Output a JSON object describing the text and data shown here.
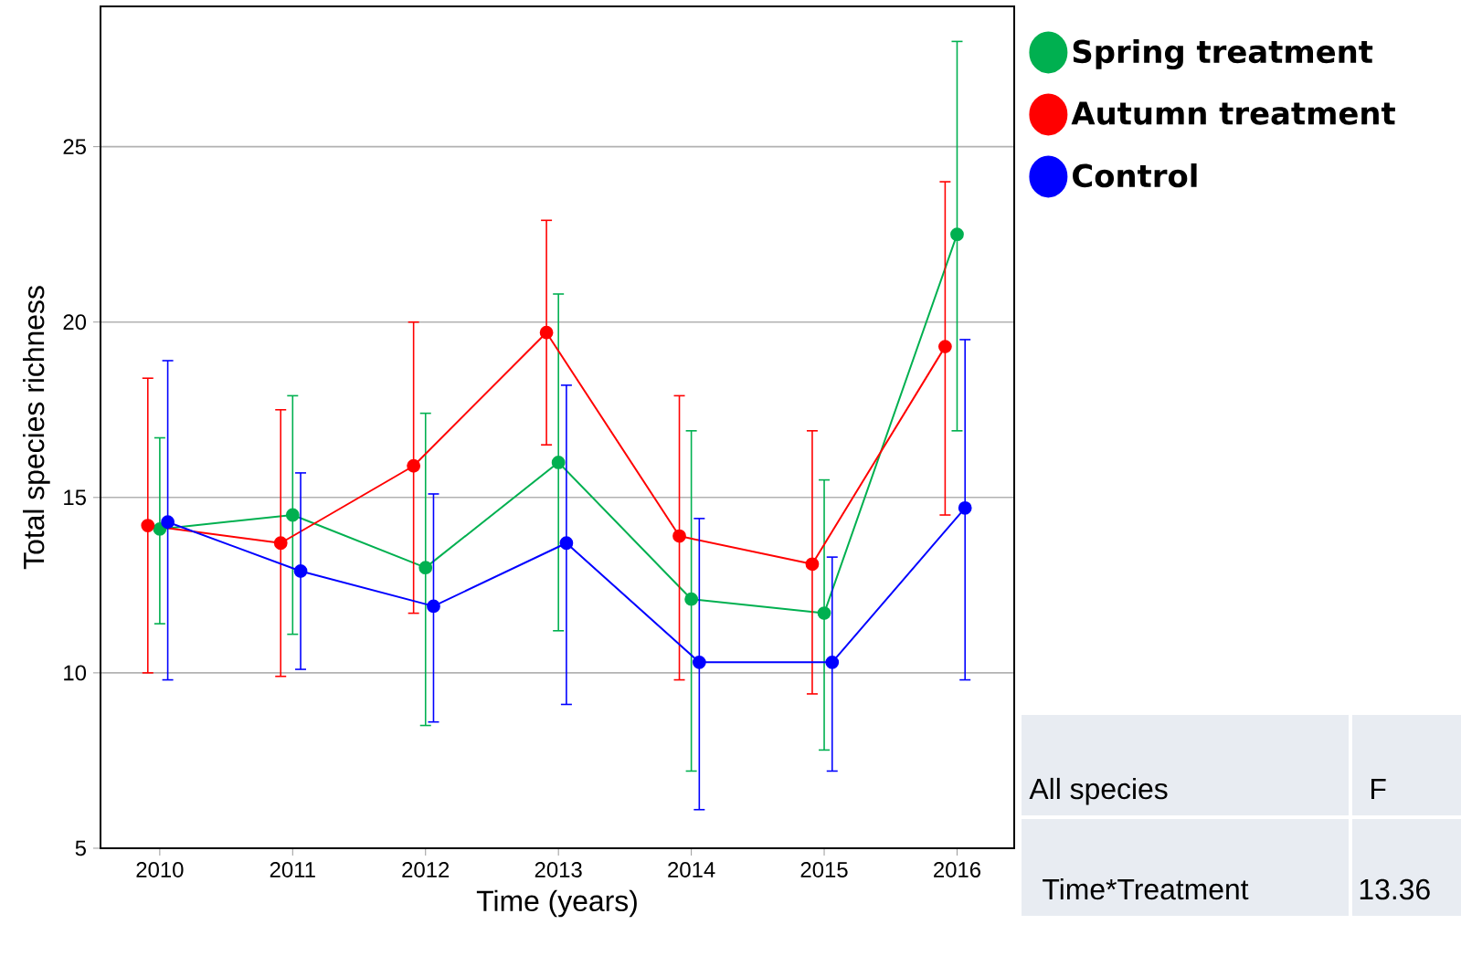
{
  "chart_data": {
    "type": "line",
    "xlabel": "Time (years)",
    "ylabel": "Total species richness",
    "categories": [
      "2010",
      "2011",
      "2012",
      "2013",
      "2014",
      "2015",
      "2016"
    ],
    "series": [
      {
        "name": "Spring treatment",
        "color": "#00b050",
        "values": [
          14.1,
          14.5,
          13.0,
          16.0,
          12.1,
          11.7,
          22.5
        ],
        "errors": [
          [
            11.4,
            16.7
          ],
          [
            11.1,
            17.9
          ],
          [
            8.5,
            17.4
          ],
          [
            11.2,
            20.8
          ],
          [
            7.2,
            16.9
          ],
          [
            7.8,
            15.5
          ],
          [
            16.9,
            28.0
          ]
        ]
      },
      {
        "name": "Autumn treatment",
        "color": "#ff0000",
        "values": [
          14.2,
          13.7,
          15.9,
          19.7,
          13.9,
          13.1,
          19.3
        ],
        "errors": [
          [
            10.0,
            18.4
          ],
          [
            9.9,
            17.5
          ],
          [
            11.7,
            20.0
          ],
          [
            16.5,
            22.9
          ],
          [
            9.8,
            17.9
          ],
          [
            9.4,
            16.9
          ],
          [
            14.5,
            24.0
          ]
        ]
      },
      {
        "name": "Control",
        "color": "#0000ff",
        "values": [
          14.3,
          12.9,
          11.9,
          13.7,
          10.3,
          10.3,
          14.7
        ],
        "errors": [
          [
            9.8,
            18.9
          ],
          [
            10.1,
            15.7
          ],
          [
            8.6,
            15.1
          ],
          [
            9.1,
            18.2
          ],
          [
            6.1,
            14.4
          ],
          [
            7.2,
            13.3
          ],
          [
            9.8,
            19.5
          ]
        ]
      }
    ],
    "ylim": [
      5,
      29
    ],
    "yticks": [
      5,
      10,
      15,
      20,
      25
    ],
    "grid": "y",
    "legend": "top right",
    "marker": "circle",
    "line_style": "solid",
    "annotations": [
      "All species",
      "F",
      "Time*Treatment",
      "13.36"
    ]
  }
}
